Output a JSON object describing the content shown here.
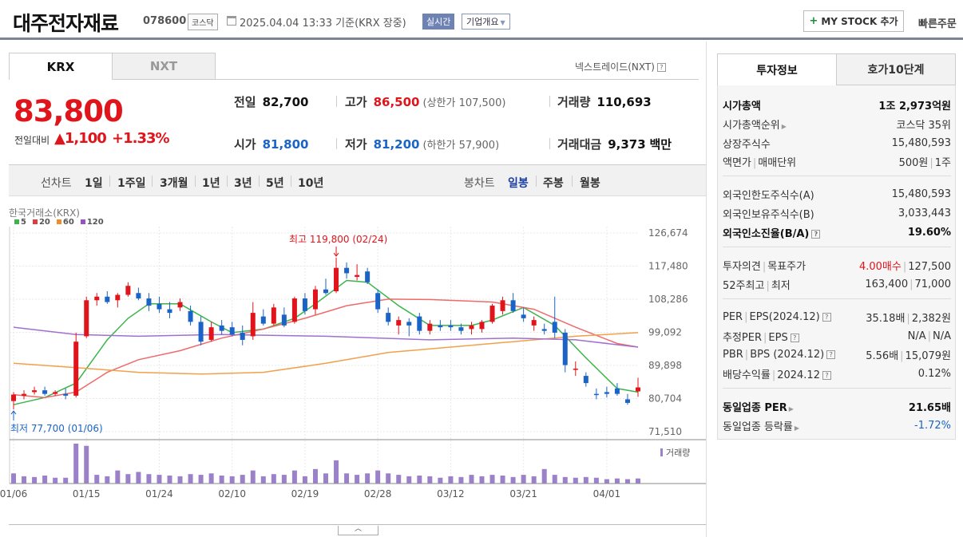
{
  "header": {
    "name": "대주전자재료",
    "code": "078600",
    "market": "코스닥",
    "date": "2025.04.04 13:33  기준(KRX 장중)",
    "realtime": "실시간",
    "overview": "기업개요",
    "mystock": "MY STOCK 추가",
    "quick_order": "빠른주문"
  },
  "tabs": {
    "krx": "KRX",
    "nxt": "NXT",
    "nxt_link": "넥스트레이드(NXT)"
  },
  "price": {
    "current": "83,800",
    "change_label": "전일대비",
    "change": "▲1,100",
    "change_pct": "+1.33%"
  },
  "stats": {
    "prev_close_label": "전일",
    "prev_close": "82,700",
    "high_label": "고가",
    "high": "86,500",
    "upper_limit": "(상한가 107,500)",
    "volume_label": "거래량",
    "volume": "110,693",
    "open_label": "시가",
    "open": "81,800",
    "low_label": "저가",
    "low": "81,200",
    "lower_limit": "(하한가 57,900)",
    "value_label": "거래대금",
    "value": "9,373",
    "value_unit": "백만"
  },
  "periods": {
    "line_label": "선차트",
    "line_items": [
      "1일",
      "1주일",
      "3개월",
      "1년",
      "3년",
      "5년",
      "10년"
    ],
    "candle_label": "봉차트",
    "candle_items": [
      "일봉",
      "주봉",
      "월봉"
    ],
    "selected": "일봉"
  },
  "chart_data": {
    "type": "candlestick",
    "source": "한국거래소(KRX)",
    "legend": [
      {
        "name": "5",
        "color": "#3cb44b"
      },
      {
        "name": "20",
        "color": "#e03c3c"
      },
      {
        "name": "60",
        "color": "#f08c28"
      },
      {
        "name": "120",
        "color": "#9650c8"
      }
    ],
    "y_ticks": [
      "126,674",
      "117,480",
      "108,286",
      "99,092",
      "89,898",
      "80,704",
      "71,510"
    ],
    "ylim": [
      71510,
      126674
    ],
    "x_ticks": [
      "01/06",
      "01/15",
      "01/24",
      "02/10",
      "02/19",
      "02/28",
      "03/12",
      "03/21",
      "04/01"
    ],
    "x_tick_index": [
      0,
      7,
      14,
      21,
      28,
      35,
      42,
      49,
      57
    ],
    "high_label": "최고 119,800 (02/24)",
    "high_index": 31,
    "low_label": "최저 77,700 (01/06)",
    "low_index": 0,
    "volume_label": "거래량",
    "up_color": "#e0141b",
    "down_color": "#1a64c8",
    "volume_color": "#9b82c8",
    "candles": [
      [
        80000,
        82500,
        77700,
        81800
      ],
      [
        81500,
        83000,
        80500,
        82000
      ],
      [
        82500,
        84000,
        81800,
        83000
      ],
      [
        83000,
        84000,
        81500,
        82000
      ],
      [
        82000,
        83000,
        81500,
        82500
      ],
      [
        82000,
        83500,
        80500,
        81500
      ],
      [
        81500,
        99000,
        81000,
        96500
      ],
      [
        98000,
        109000,
        97500,
        108000
      ],
      [
        108000,
        110000,
        106500,
        109000
      ],
      [
        109000,
        110500,
        107000,
        107500
      ],
      [
        108000,
        110000,
        106000,
        109500
      ],
      [
        109500,
        113000,
        109000,
        112000
      ],
      [
        110000,
        111500,
        108000,
        108500
      ],
      [
        108500,
        110000,
        105000,
        106500
      ],
      [
        107000,
        109000,
        104500,
        105500
      ],
      [
        105500,
        107500,
        103000,
        104500
      ],
      [
        106000,
        108500,
        105000,
        107500
      ],
      [
        105000,
        106500,
        101000,
        102000
      ],
      [
        102000,
        103500,
        95500,
        96500
      ],
      [
        97000,
        102000,
        96500,
        100500
      ],
      [
        101000,
        102500,
        98500,
        99500
      ],
      [
        100500,
        102000,
        98000,
        98500
      ],
      [
        99000,
        101000,
        95500,
        97000
      ],
      [
        98000,
        107500,
        97000,
        104500
      ],
      [
        103500,
        105500,
        101000,
        101500
      ],
      [
        101500,
        107000,
        101000,
        106000
      ],
      [
        104000,
        106000,
        100500,
        101000
      ],
      [
        102000,
        109000,
        101500,
        108500
      ],
      [
        108500,
        110000,
        104000,
        105000
      ],
      [
        105500,
        112000,
        104000,
        111000
      ],
      [
        111000,
        114000,
        109500,
        110000
      ],
      [
        110500,
        119800,
        110000,
        117000
      ],
      [
        117000,
        118500,
        114000,
        115500
      ],
      [
        114500,
        118000,
        113500,
        115000
      ],
      [
        116000,
        117000,
        112500,
        113000
      ],
      [
        110000,
        111000,
        104500,
        105500
      ],
      [
        104500,
        106000,
        101000,
        102000
      ],
      [
        101000,
        103500,
        98500,
        102500
      ],
      [
        102000,
        103000,
        98000,
        101000
      ],
      [
        103500,
        104500,
        98500,
        99500
      ],
      [
        99500,
        102500,
        98500,
        101500
      ],
      [
        101000,
        102500,
        99500,
        100500
      ],
      [
        101000,
        102500,
        99500,
        100500
      ],
      [
        100500,
        101500,
        98500,
        99500
      ],
      [
        100000,
        102000,
        98500,
        101000
      ],
      [
        100000,
        102500,
        99000,
        102000
      ],
      [
        102000,
        107000,
        101500,
        106500
      ],
      [
        105000,
        109000,
        104000,
        108000
      ],
      [
        108000,
        110000,
        104500,
        105000
      ],
      [
        104000,
        106000,
        102000,
        103000
      ],
      [
        101000,
        103500,
        99500,
        102500
      ],
      [
        100000,
        101500,
        98500,
        99500
      ],
      [
        102000,
        109000,
        97500,
        99000
      ],
      [
        99000,
        100000,
        88000,
        90000
      ],
      [
        89000,
        91000,
        87000,
        89000
      ],
      [
        87000,
        88000,
        84000,
        85000
      ],
      [
        82000,
        83500,
        80500,
        81800
      ],
      [
        82500,
        84000,
        81000,
        82000
      ],
      [
        83500,
        85000,
        81500,
        82000
      ],
      [
        80500,
        82000,
        79000,
        79500
      ],
      [
        82700,
        86500,
        81200,
        83800
      ]
    ],
    "ma": {
      "5": [
        [
          0,
          79000
        ],
        [
          3,
          81000
        ],
        [
          6,
          85000
        ],
        [
          9,
          97000
        ],
        [
          11,
          103000
        ],
        [
          13,
          107000
        ],
        [
          16,
          107000
        ],
        [
          19,
          102000
        ],
        [
          21,
          99000
        ],
        [
          24,
          100000
        ],
        [
          27,
          103000
        ],
        [
          29,
          107000
        ],
        [
          32,
          113500
        ],
        [
          34,
          113000
        ],
        [
          37,
          106500
        ],
        [
          40,
          101000
        ],
        [
          44,
          101000
        ],
        [
          46,
          102500
        ],
        [
          49,
          106000
        ],
        [
          52,
          101000
        ],
        [
          55,
          92000
        ],
        [
          58,
          83500
        ],
        [
          60,
          82500
        ]
      ],
      "20": [
        [
          0,
          81800
        ],
        [
          3,
          81000
        ],
        [
          6,
          82500
        ],
        [
          9,
          88000
        ],
        [
          12,
          91500
        ],
        [
          16,
          94000
        ],
        [
          20,
          97500
        ],
        [
          24,
          100000
        ],
        [
          28,
          103000
        ],
        [
          32,
          106500
        ],
        [
          36,
          108300
        ],
        [
          40,
          108200
        ],
        [
          46,
          107500
        ],
        [
          50,
          105500
        ],
        [
          54,
          100500
        ],
        [
          58,
          96000
        ],
        [
          60,
          95000
        ]
      ],
      "60": [
        [
          0,
          90500
        ],
        [
          6,
          89300
        ],
        [
          12,
          88000
        ],
        [
          18,
          87500
        ],
        [
          24,
          88000
        ],
        [
          30,
          90500
        ],
        [
          36,
          93500
        ],
        [
          42,
          95000
        ],
        [
          48,
          96500
        ],
        [
          54,
          98000
        ],
        [
          60,
          99000
        ]
      ],
      "120": [
        [
          0,
          100500
        ],
        [
          6,
          98500
        ],
        [
          12,
          98000
        ],
        [
          20,
          98500
        ],
        [
          30,
          98000
        ],
        [
          40,
          97000
        ],
        [
          48,
          97500
        ],
        [
          54,
          97000
        ],
        [
          60,
          95000
        ]
      ]
    },
    "volume": [
      14,
      10,
      9,
      11,
      8,
      8,
      55,
      52,
      12,
      10,
      18,
      13,
      16,
      13,
      12,
      11,
      10,
      13,
      12,
      14,
      11,
      10,
      12,
      18,
      10,
      13,
      12,
      18,
      10,
      20,
      14,
      32,
      14,
      12,
      14,
      18,
      14,
      12,
      10,
      11,
      10,
      8,
      10,
      9,
      12,
      10,
      12,
      11,
      9,
      12,
      10,
      20,
      12,
      9,
      8,
      9,
      8,
      6,
      7,
      6,
      7
    ]
  },
  "info_tabs": {
    "invest": "투자정보",
    "orderbook": "호가10단계"
  },
  "info": {
    "market_cap": {
      "label": "시가총액",
      "value": "1조 2,973억원"
    },
    "market_cap_rank": {
      "label": "시가총액순위",
      "value": "코스닥 35위"
    },
    "listed_shares": {
      "label": "상장주식수",
      "value": "15,480,593"
    },
    "par_value": {
      "label": "액면가",
      "label2": "매매단위",
      "value": "500원",
      "value2": "1주"
    },
    "foreign_limit": {
      "label": "외국인한도주식수(A)",
      "value": "15,480,593"
    },
    "foreign_holding": {
      "label": "외국인보유주식수(B)",
      "value": "3,033,443"
    },
    "foreign_ratio": {
      "label": "외국인소진율(B/A)",
      "value": "19.60%"
    },
    "opinion": {
      "label": "투자의견",
      "label2": "목표주가",
      "value": "4.00매수",
      "value2": "127,500"
    },
    "w52": {
      "label": "52주최고",
      "label2": "최저",
      "value": "163,400",
      "value2": "71,000"
    },
    "per": {
      "label": "PER",
      "label2": "EPS(2024.12)",
      "value": "35.18배",
      "value2": "2,382원"
    },
    "est_per": {
      "label": "추정PER",
      "label2": "EPS",
      "value": "N/A",
      "value2": "N/A"
    },
    "pbr": {
      "label": "PBR",
      "label2": "BPS (2024.12)",
      "value": "5.56배",
      "value2": "15,079원"
    },
    "dividend": {
      "label": "배당수익률",
      "label2": "2024.12",
      "value": "0.12%"
    },
    "industry_per": {
      "label": "동일업종 PER",
      "value": "21.65배"
    },
    "industry_change": {
      "label": "동일업종 등락률",
      "value": "-1.72%"
    }
  }
}
